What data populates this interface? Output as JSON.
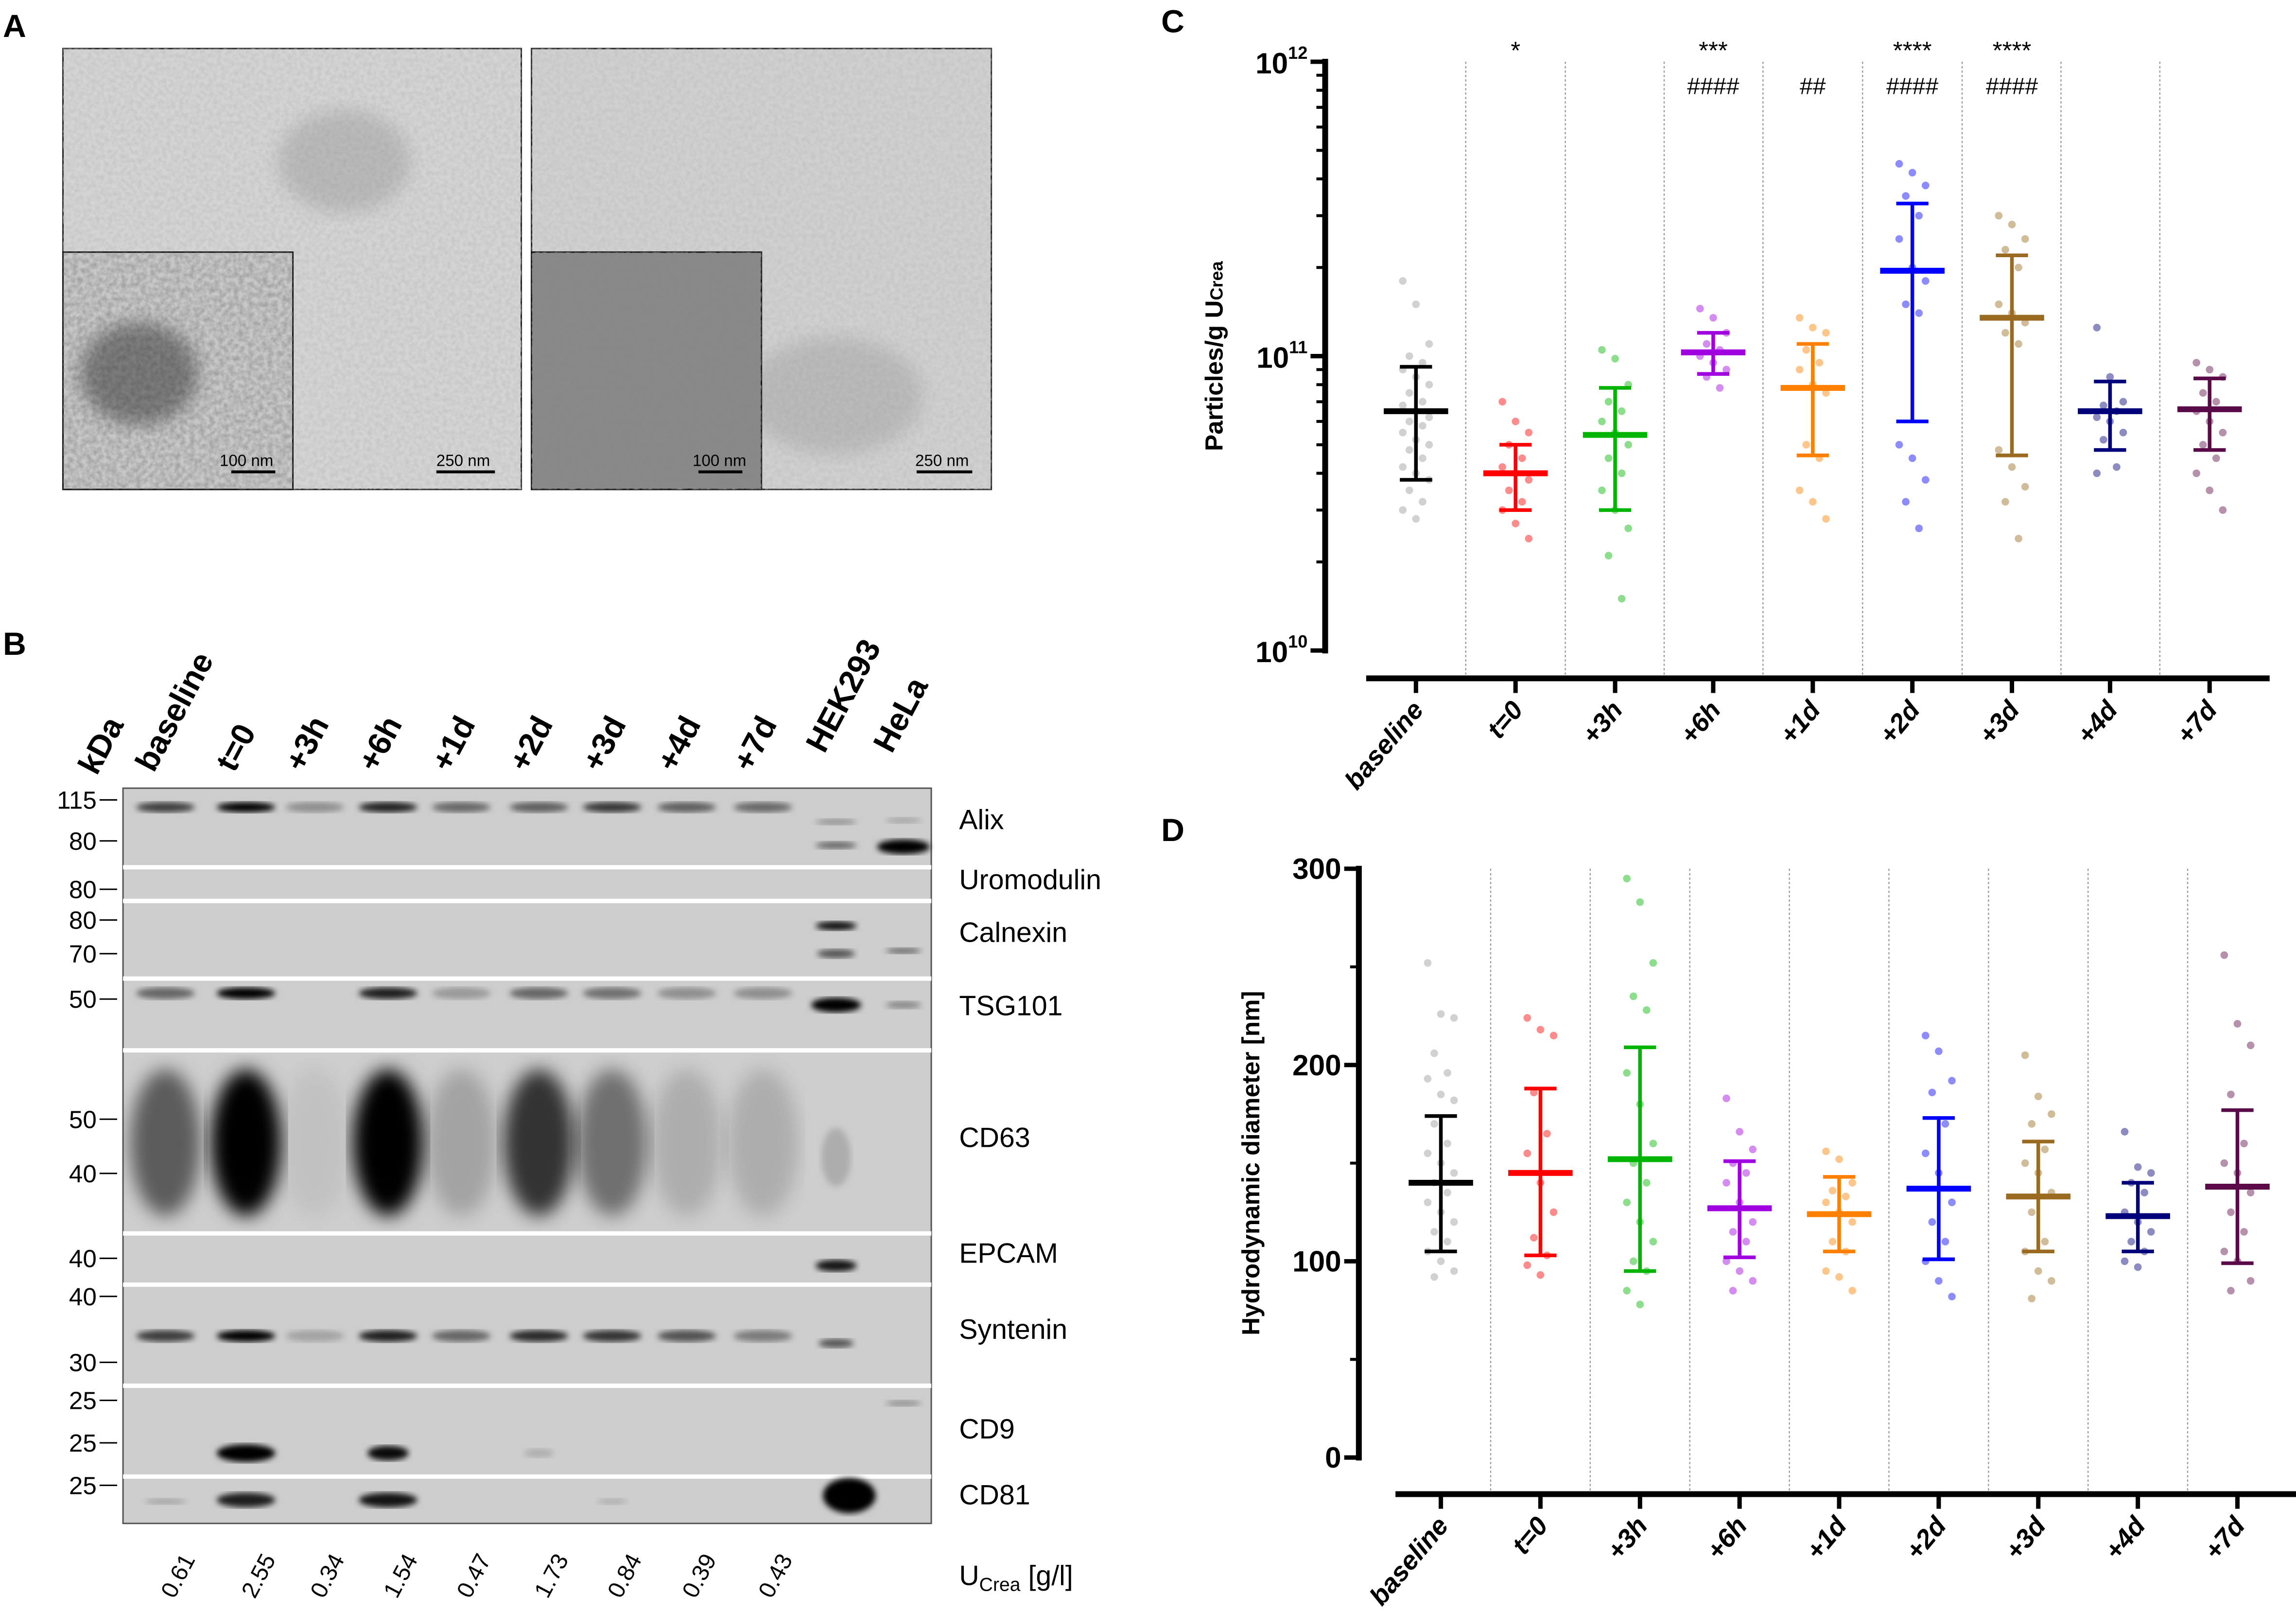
{
  "panels": {
    "a": "A",
    "b": "B",
    "c": "C",
    "d": "D"
  },
  "panel_a": {
    "images": [
      {
        "scale_main": "250 nm",
        "scale_inset": "100 nm"
      },
      {
        "scale_main": "250 nm",
        "scale_inset": "100 nm"
      }
    ]
  },
  "panel_b": {
    "kda_label": "kDa",
    "lanes": [
      "baseline",
      "t=0",
      "+3h",
      "+6h",
      "+1d",
      "+2d",
      "+3d",
      "+4d",
      "+7d",
      "HEK293",
      "HeLa"
    ],
    "strips": [
      {
        "protein": "Alix",
        "markers": [
          "115",
          "80"
        ]
      },
      {
        "protein": "Uromodulin",
        "markers": [
          "80"
        ]
      },
      {
        "protein": "Calnexin",
        "markers": [
          "80",
          "70"
        ]
      },
      {
        "protein": "TSG101",
        "markers": [
          "50"
        ]
      },
      {
        "protein": "CD63",
        "markers": [
          "50",
          "40"
        ]
      },
      {
        "protein": "EPCAM",
        "markers": [
          "40"
        ]
      },
      {
        "protein": "Syntenin",
        "markers": [
          "40",
          "30"
        ]
      },
      {
        "protein": "CD9",
        "markers": [
          "25",
          "25"
        ]
      },
      {
        "protein": "CD81",
        "markers": [
          "25"
        ]
      }
    ],
    "ucrea_values": [
      "0.61",
      "2.55",
      "0.34",
      "1.54",
      "0.47",
      "1.73",
      "0.84",
      "0.39",
      "0.43"
    ],
    "ucrea_label": "U",
    "ucrea_sub": "Crea",
    "ucrea_unit": " [g/l]"
  },
  "chart_data": [
    {
      "type": "scatter",
      "panel": "C",
      "ylabel": "Particles/g U",
      "ylabel_sub": "Crea",
      "yscale": "log",
      "ylim": [
        10000000000.0,
        1000000000000.0
      ],
      "yticks": [
        {
          "base": "10",
          "exp": "10",
          "value": 10000000000.0
        },
        {
          "base": "10",
          "exp": "11",
          "value": 100000000000.0
        },
        {
          "base": "10",
          "exp": "12",
          "value": 1000000000000.0
        }
      ],
      "grid": "vertical dotted separators",
      "categories": [
        "baseline",
        "t=0",
        "+3h",
        "+6h",
        "+1d",
        "+2d",
        "+3d",
        "+4d",
        "+7d"
      ],
      "colors": [
        "#999999",
        "#ff0000",
        "#00b400",
        "#a000e0",
        "#ff8000",
        "#0000ff",
        "#9a6a20",
        "#00007a",
        "#5a0a48"
      ],
      "mean": [
        65000000000.0,
        40000000000.0,
        54000000000.0,
        103000000000.0,
        78000000000.0,
        195000000000.0,
        135000000000.0,
        65000000000.0,
        66000000000.0
      ],
      "sd_low": [
        38000000000.0,
        30000000000.0,
        30000000000.0,
        87000000000.0,
        46000000000.0,
        60000000000.0,
        46000000000.0,
        48000000000.0,
        48000000000.0
      ],
      "sd_high": [
        92000000000.0,
        50000000000.0,
        78000000000.0,
        120000000000.0,
        110000000000.0,
        330000000000.0,
        220000000000.0,
        82000000000.0,
        84000000000.0
      ],
      "points": [
        [
          180000000000.0,
          150000000000.0,
          110000000000.0,
          100000000000.0,
          95000000000.0,
          90000000000.0,
          85000000000.0,
          80000000000.0,
          75000000000.0,
          70000000000.0,
          68000000000.0,
          65000000000.0,
          62000000000.0,
          60000000000.0,
          58000000000.0,
          55000000000.0,
          52000000000.0,
          50000000000.0,
          48000000000.0,
          45000000000.0,
          42000000000.0,
          40000000000.0,
          38000000000.0,
          35000000000.0,
          32000000000.0,
          30000000000.0,
          28000000000.0
        ],
        [
          70000000000.0,
          60000000000.0,
          55000000000.0,
          50000000000.0,
          45000000000.0,
          42000000000.0,
          40000000000.0,
          38000000000.0,
          35000000000.0,
          32000000000.0,
          30000000000.0,
          27000000000.0,
          24000000000.0
        ],
        [
          105000000000.0,
          98000000000.0,
          80000000000.0,
          70000000000.0,
          65000000000.0,
          60000000000.0,
          55000000000.0,
          50000000000.0,
          45000000000.0,
          40000000000.0,
          35000000000.0,
          30000000000.0,
          26000000000.0,
          21000000000.0,
          15000000000.0
        ],
        [
          145000000000.0,
          135000000000.0,
          120000000000.0,
          110000000000.0,
          105000000000.0,
          100000000000.0,
          95000000000.0,
          90000000000.0,
          85000000000.0,
          78000000000.0
        ],
        [
          135000000000.0,
          125000000000.0,
          120000000000.0,
          105000000000.0,
          95000000000.0,
          90000000000.0,
          80000000000.0,
          75000000000.0,
          50000000000.0,
          45000000000.0,
          35000000000.0,
          32000000000.0,
          28000000000.0
        ],
        [
          450000000000.0,
          420000000000.0,
          380000000000.0,
          350000000000.0,
          300000000000.0,
          250000000000.0,
          200000000000.0,
          180000000000.0,
          150000000000.0,
          140000000000.0,
          50000000000.0,
          45000000000.0,
          38000000000.0,
          32000000000.0,
          26000000000.0
        ],
        [
          300000000000.0,
          280000000000.0,
          250000000000.0,
          230000000000.0,
          200000000000.0,
          150000000000.0,
          140000000000.0,
          130000000000.0,
          120000000000.0,
          110000000000.0,
          48000000000.0,
          42000000000.0,
          36000000000.0,
          32000000000.0,
          24000000000.0
        ],
        [
          125000000000.0,
          85000000000.0,
          70000000000.0,
          68000000000.0,
          65000000000.0,
          62000000000.0,
          60000000000.0,
          55000000000.0,
          52000000000.0,
          42000000000.0,
          40000000000.0
        ],
        [
          95000000000.0,
          90000000000.0,
          85000000000.0,
          75000000000.0,
          70000000000.0,
          65000000000.0,
          60000000000.0,
          55000000000.0,
          50000000000.0,
          45000000000.0,
          40000000000.0,
          35000000000.0,
          30000000000.0
        ]
      ],
      "annotations_top": [
        "",
        "*",
        "",
        "***",
        "",
        "****",
        "****",
        "",
        ""
      ],
      "annotations_bottom": [
        "",
        "",
        "",
        "####",
        "##",
        "####",
        "####",
        "",
        ""
      ]
    },
    {
      "type": "scatter",
      "panel": "D",
      "ylabel": "Hydrodynamic diameter [nm]",
      "ylim": [
        0,
        300
      ],
      "yticks": [
        "0",
        "100",
        "200",
        "300"
      ],
      "grid": "vertical dotted separators",
      "categories": [
        "baseline",
        "t=0",
        "+3h",
        "+6h",
        "+1d",
        "+2d",
        "+3d",
        "+4d",
        "+7d"
      ],
      "colors": [
        "#999999",
        "#ff0000",
        "#00b400",
        "#a000e0",
        "#ff8000",
        "#0000ff",
        "#9a6a20",
        "#00007a",
        "#5a0a48"
      ],
      "mean": [
        140,
        145,
        152,
        127,
        124,
        137,
        133,
        123,
        138
      ],
      "sd_low": [
        105,
        103,
        95,
        102,
        105,
        101,
        105,
        105,
        99
      ],
      "sd_high": [
        174,
        188,
        209,
        151,
        143,
        173,
        161,
        140,
        177
      ],
      "points": [
        [
          252,
          226,
          224,
          206,
          196,
          193,
          185,
          182,
          170,
          160,
          155,
          150,
          145,
          140,
          135,
          130,
          125,
          120,
          115,
          110,
          105,
          100,
          95,
          92
        ],
        [
          224,
          218,
          215,
          186,
          165,
          155,
          140,
          125,
          112,
          103,
          98,
          93
        ],
        [
          295,
          283,
          252,
          235,
          228,
          196,
          180,
          160,
          150,
          140,
          130,
          120,
          110,
          100,
          95,
          85,
          78
        ],
        [
          183,
          166,
          157,
          150,
          145,
          140,
          130,
          120,
          115,
          110,
          100,
          95,
          90,
          85
        ],
        [
          156,
          152,
          140,
          136,
          133,
          130,
          125,
          120,
          110,
          105,
          95,
          92,
          85
        ],
        [
          215,
          207,
          192,
          186,
          170,
          155,
          145,
          130,
          120,
          110,
          100,
          90,
          82
        ],
        [
          205,
          184,
          175,
          170,
          157,
          150,
          145,
          135,
          125,
          110,
          105,
          95,
          90,
          81
        ],
        [
          166,
          148,
          145,
          140,
          135,
          125,
          120,
          115,
          110,
          105,
          100,
          97
        ],
        [
          256,
          221,
          210,
          185,
          160,
          150,
          145,
          135,
          125,
          115,
          105,
          100,
          90,
          85
        ]
      ]
    }
  ]
}
